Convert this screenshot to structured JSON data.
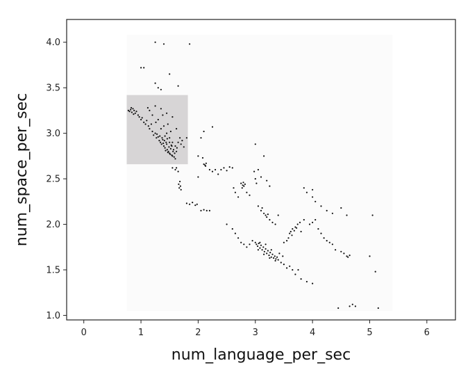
{
  "chart_data": {
    "type": "scatter",
    "xlabel": "num_language_per_sec",
    "ylabel": "num_space_per_sec",
    "xlim": [
      -0.3,
      6.5
    ],
    "ylim": [
      0.95,
      4.25
    ],
    "xticks": [
      0,
      1,
      2,
      3,
      4,
      5,
      6
    ],
    "yticks": [
      1.0,
      1.5,
      2.0,
      2.5,
      3.0,
      3.5,
      4.0
    ],
    "xtick_labels": [
      "0",
      "1",
      "2",
      "3",
      "4",
      "5",
      "6"
    ],
    "ytick_labels": [
      "1.0",
      "1.5",
      "2.0",
      "2.5",
      "3.0",
      "3.5",
      "4.0"
    ],
    "grid": false,
    "selection_region": {
      "x": [
        0.75,
        1.82
      ],
      "y": [
        2.66,
        3.42
      ],
      "color": "#d7d5d6"
    },
    "background_region": {
      "x": [
        0.75,
        5.4
      ],
      "y": [
        1.05,
        4.08
      ],
      "color": "#fbfbfb"
    },
    "point_color": "#111111",
    "series": [
      {
        "points": [
          [
            0.78,
            3.25
          ],
          [
            0.8,
            3.24
          ],
          [
            0.82,
            3.26
          ],
          [
            0.84,
            3.23
          ],
          [
            0.86,
            3.27
          ],
          [
            0.88,
            3.25
          ],
          [
            0.9,
            3.22
          ],
          [
            0.92,
            3.24
          ],
          [
            0.83,
            3.28
          ],
          [
            0.87,
            3.21
          ],
          [
            0.95,
            3.2
          ],
          [
            0.97,
            3.18
          ],
          [
            1.0,
            3.15
          ],
          [
            1.02,
            3.17
          ],
          [
            1.05,
            3.12
          ],
          [
            1.08,
            3.1
          ],
          [
            1.1,
            3.14
          ],
          [
            1.13,
            3.08
          ],
          [
            1.15,
            3.05
          ],
          [
            1.18,
            3.1
          ],
          [
            1.2,
            3.02
          ],
          [
            1.22,
            2.98
          ],
          [
            1.25,
            3.0
          ],
          [
            1.27,
            2.95
          ],
          [
            1.3,
            2.96
          ],
          [
            1.32,
            2.92
          ],
          [
            1.34,
            2.9
          ],
          [
            1.36,
            2.88
          ],
          [
            1.38,
            2.93
          ],
          [
            1.4,
            2.86
          ],
          [
            1.42,
            2.84
          ],
          [
            1.44,
            2.9
          ],
          [
            1.46,
            2.82
          ],
          [
            1.48,
            2.8
          ],
          [
            1.5,
            2.78
          ],
          [
            1.52,
            2.83
          ],
          [
            1.54,
            2.76
          ],
          [
            1.56,
            2.8
          ],
          [
            1.58,
            2.74
          ],
          [
            1.6,
            2.72
          ],
          [
            1.28,
            2.99
          ],
          [
            1.33,
            2.97
          ],
          [
            1.37,
            2.95
          ],
          [
            1.41,
            2.92
          ],
          [
            1.45,
            2.88
          ],
          [
            1.49,
            2.85
          ],
          [
            1.53,
            2.87
          ],
          [
            1.57,
            2.82
          ],
          [
            1.35,
            3.05
          ],
          [
            1.4,
            3.08
          ],
          [
            1.45,
            3.0
          ],
          [
            1.5,
            2.95
          ],
          [
            1.55,
            2.9
          ],
          [
            1.6,
            2.86
          ],
          [
            1.62,
            2.8
          ],
          [
            1.26,
            3.12
          ],
          [
            1.3,
            3.15
          ],
          [
            1.38,
            3.2
          ],
          [
            1.47,
            3.1
          ],
          [
            1.52,
            3.02
          ],
          [
            1.42,
            2.97
          ],
          [
            1.46,
            2.94
          ],
          [
            1.5,
            2.9
          ],
          [
            1.54,
            2.86
          ],
          [
            1.39,
            2.89
          ],
          [
            1.43,
            2.81
          ],
          [
            1.47,
            2.79
          ],
          [
            1.51,
            2.77
          ],
          [
            1.55,
            2.75
          ],
          [
            1.59,
            2.78
          ],
          [
            1.63,
            2.84
          ],
          [
            1.65,
            2.9
          ],
          [
            1.12,
            3.28
          ],
          [
            1.15,
            3.25
          ],
          [
            1.2,
            3.2
          ],
          [
            1.25,
            3.3
          ],
          [
            1.35,
            3.27
          ],
          [
            1.45,
            3.22
          ],
          [
            1.55,
            3.18
          ],
          [
            1.62,
            3.05
          ],
          [
            1.68,
            2.95
          ],
          [
            1.7,
            2.88
          ],
          [
            1.72,
            2.92
          ],
          [
            1.75,
            2.85
          ],
          [
            1.8,
            2.95
          ],
          [
            1.0,
            3.72
          ],
          [
            1.05,
            3.72
          ],
          [
            1.3,
            3.5
          ],
          [
            1.35,
            3.48
          ],
          [
            1.25,
            3.55
          ],
          [
            1.65,
            3.52
          ],
          [
            1.5,
            3.65
          ],
          [
            1.25,
            4.0
          ],
          [
            1.4,
            3.98
          ],
          [
            1.85,
            3.98
          ],
          [
            1.55,
            2.62
          ],
          [
            1.6,
            2.6
          ],
          [
            1.62,
            2.62
          ],
          [
            1.65,
            2.58
          ],
          [
            1.68,
            2.47
          ],
          [
            1.66,
            2.44
          ],
          [
            1.69,
            2.42
          ],
          [
            1.67,
            2.4
          ],
          [
            1.7,
            2.38
          ],
          [
            1.8,
            2.23
          ],
          [
            1.85,
            2.22
          ],
          [
            1.9,
            2.24
          ],
          [
            1.95,
            2.21
          ],
          [
            1.98,
            2.22
          ],
          [
            2.05,
            2.15
          ],
          [
            2.1,
            2.16
          ],
          [
            2.15,
            2.15
          ],
          [
            2.2,
            2.15
          ],
          [
            2.0,
            2.75
          ],
          [
            2.08,
            2.73
          ],
          [
            2.1,
            2.66
          ],
          [
            2.12,
            2.65
          ],
          [
            2.14,
            2.67
          ],
          [
            2.13,
            2.64
          ],
          [
            2.2,
            2.6
          ],
          [
            2.25,
            2.58
          ],
          [
            2.3,
            2.6
          ],
          [
            2.35,
            2.55
          ],
          [
            2.4,
            2.6
          ],
          [
            2.45,
            2.62
          ],
          [
            2.5,
            2.59
          ],
          [
            2.55,
            2.63
          ],
          [
            2.6,
            2.62
          ],
          [
            2.05,
            2.95
          ],
          [
            2.1,
            3.02
          ],
          [
            2.25,
            3.07
          ],
          [
            2.0,
            2.52
          ],
          [
            2.75,
            2.45
          ],
          [
            2.78,
            2.43
          ],
          [
            2.8,
            2.42
          ],
          [
            2.82,
            2.44
          ],
          [
            2.77,
            2.4
          ],
          [
            2.79,
            2.46
          ],
          [
            2.85,
            2.35
          ],
          [
            2.9,
            2.32
          ],
          [
            2.7,
            2.3
          ],
          [
            2.65,
            2.35
          ],
          [
            2.62,
            2.4
          ],
          [
            2.98,
            2.58
          ],
          [
            3.0,
            2.5
          ],
          [
            3.02,
            2.45
          ],
          [
            3.05,
            2.6
          ],
          [
            3.1,
            2.52
          ],
          [
            3.2,
            2.48
          ],
          [
            3.25,
            2.42
          ],
          [
            3.15,
            2.75
          ],
          [
            3.0,
            2.88
          ],
          [
            3.05,
            2.2
          ],
          [
            3.1,
            2.15
          ],
          [
            3.15,
            2.12
          ],
          [
            3.18,
            2.1
          ],
          [
            3.2,
            2.08
          ],
          [
            3.22,
            2.11
          ],
          [
            3.25,
            2.05
          ],
          [
            3.3,
            2.02
          ],
          [
            3.35,
            2.0
          ],
          [
            3.12,
            2.18
          ],
          [
            3.4,
            2.1
          ],
          [
            3.0,
            1.8
          ],
          [
            3.02,
            1.78
          ],
          [
            3.04,
            1.76
          ],
          [
            3.06,
            1.79
          ],
          [
            3.08,
            1.74
          ],
          [
            3.1,
            1.77
          ],
          [
            3.12,
            1.72
          ],
          [
            3.14,
            1.75
          ],
          [
            3.16,
            1.7
          ],
          [
            3.18,
            1.73
          ],
          [
            3.2,
            1.68
          ],
          [
            3.22,
            1.71
          ],
          [
            3.24,
            1.66
          ],
          [
            3.26,
            1.69
          ],
          [
            3.28,
            1.64
          ],
          [
            3.3,
            1.67
          ],
          [
            3.32,
            1.63
          ],
          [
            3.34,
            1.65
          ],
          [
            3.36,
            1.62
          ],
          [
            3.38,
            1.64
          ],
          [
            3.4,
            1.61
          ],
          [
            3.05,
            1.72
          ],
          [
            3.15,
            1.67
          ],
          [
            3.25,
            1.63
          ],
          [
            3.35,
            1.6
          ],
          [
            3.45,
            1.58
          ],
          [
            3.5,
            1.56
          ],
          [
            3.55,
            1.52
          ],
          [
            3.6,
            1.54
          ],
          [
            3.65,
            1.5
          ],
          [
            2.95,
            1.82
          ],
          [
            2.9,
            1.78
          ],
          [
            2.85,
            1.75
          ],
          [
            3.08,
            1.8
          ],
          [
            3.18,
            1.78
          ],
          [
            3.28,
            1.72
          ],
          [
            3.42,
            1.68
          ],
          [
            3.48,
            1.65
          ],
          [
            3.6,
            1.9
          ],
          [
            3.62,
            1.92
          ],
          [
            3.65,
            1.95
          ],
          [
            3.68,
            1.93
          ],
          [
            3.7,
            1.97
          ],
          [
            3.72,
            1.96
          ],
          [
            3.64,
            1.88
          ],
          [
            3.74,
            2.0
          ],
          [
            3.58,
            1.85
          ],
          [
            3.55,
            1.82
          ],
          [
            3.5,
            1.8
          ],
          [
            3.78,
            2.02
          ],
          [
            3.8,
            1.92
          ],
          [
            3.85,
            2.05
          ],
          [
            3.95,
            2.0
          ],
          [
            4.0,
            2.02
          ],
          [
            4.05,
            2.05
          ],
          [
            4.1,
            1.95
          ],
          [
            4.15,
            1.9
          ],
          [
            4.2,
            1.85
          ],
          [
            4.25,
            1.82
          ],
          [
            4.3,
            1.8
          ],
          [
            4.35,
            1.78
          ],
          [
            4.4,
            1.72
          ],
          [
            4.5,
            1.7
          ],
          [
            4.55,
            1.68
          ],
          [
            4.6,
            1.65
          ],
          [
            4.62,
            1.64
          ],
          [
            4.65,
            1.66
          ],
          [
            3.85,
            2.4
          ],
          [
            3.9,
            2.35
          ],
          [
            4.0,
            2.3
          ],
          [
            4.05,
            2.25
          ],
          [
            4.15,
            2.2
          ],
          [
            4.25,
            2.15
          ],
          [
            4.35,
            2.12
          ],
          [
            4.5,
            2.18
          ],
          [
            4.6,
            2.1
          ],
          [
            4.0,
            2.38
          ],
          [
            2.5,
            2.0
          ],
          [
            2.6,
            1.95
          ],
          [
            2.7,
            1.85
          ],
          [
            2.75,
            1.8
          ],
          [
            2.8,
            1.78
          ],
          [
            2.65,
            1.9
          ],
          [
            3.7,
            1.45
          ],
          [
            3.8,
            1.4
          ],
          [
            3.9,
            1.37
          ],
          [
            4.0,
            1.35
          ],
          [
            3.75,
            1.5
          ],
          [
            4.45,
            1.08
          ],
          [
            4.65,
            1.1
          ],
          [
            4.7,
            1.12
          ],
          [
            4.75,
            1.1
          ],
          [
            5.15,
            1.08
          ],
          [
            5.0,
            1.65
          ],
          [
            5.1,
            1.48
          ],
          [
            5.05,
            2.1
          ]
        ]
      }
    ]
  }
}
